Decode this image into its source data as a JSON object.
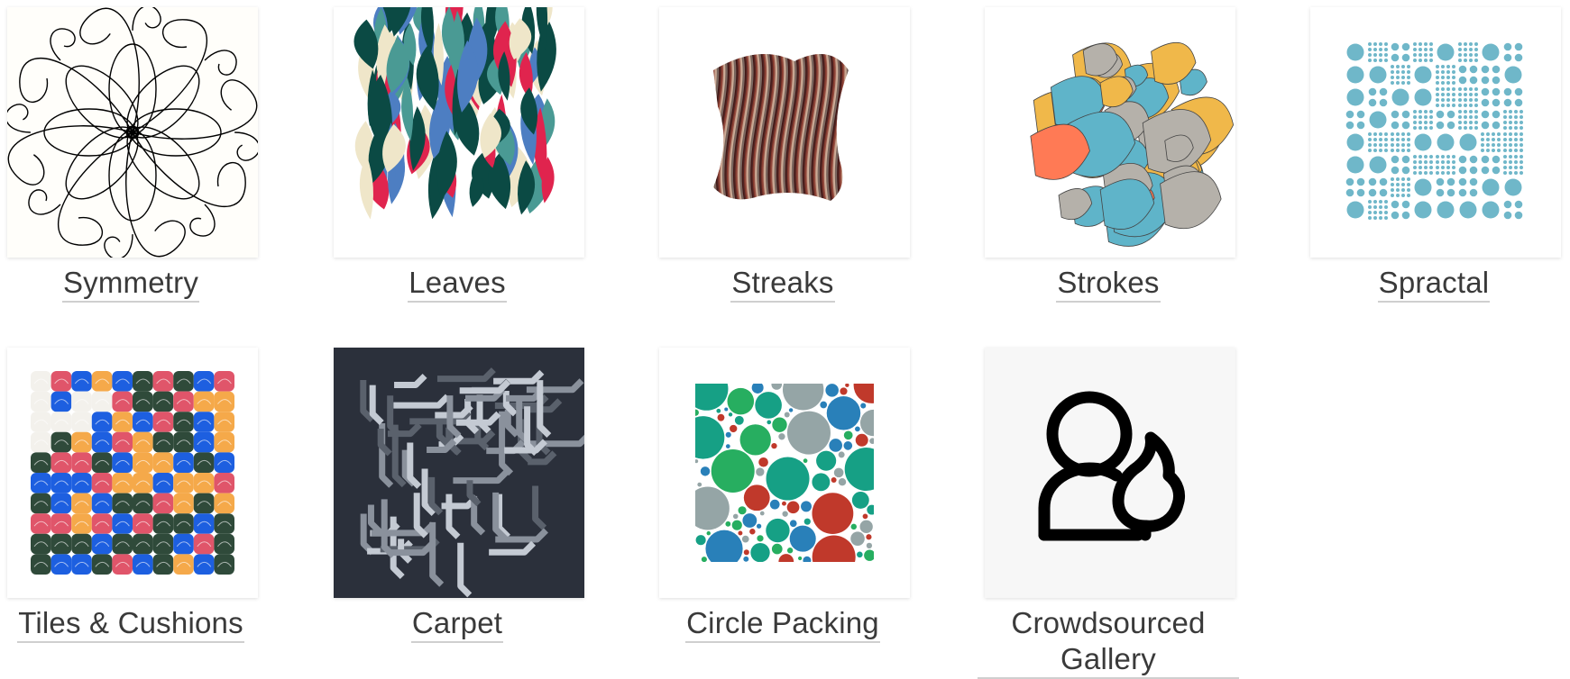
{
  "gallery": {
    "items": [
      {
        "id": "symmetry",
        "label": "Symmetry",
        "icon": "symmetry-thumbnail"
      },
      {
        "id": "leaves",
        "label": "Leaves",
        "icon": "leaves-thumbnail",
        "colors": [
          "#0b4a44",
          "#e0244e",
          "#4a9a94",
          "#4d7ec2",
          "#efe6c9"
        ]
      },
      {
        "id": "streaks",
        "label": "Streaks",
        "icon": "streaks-thumbnail",
        "colors": [
          "#3b0d0c",
          "#8a3a2c",
          "#c9a58f",
          "#6e5a52"
        ]
      },
      {
        "id": "strokes",
        "label": "Strokes",
        "icon": "strokes-thumbnail",
        "colors": [
          "#5fb4c9",
          "#f0b84a",
          "#ff7a55",
          "#b5b1aa"
        ]
      },
      {
        "id": "spractal",
        "label": "Spractal",
        "icon": "spractal-thumbnail",
        "colors": [
          "#6fb7c9"
        ]
      },
      {
        "id": "tiles",
        "label": "Tiles & Cushions",
        "icon": "tiles-thumbnail",
        "colors": [
          "#2f4a3a",
          "#e0556a",
          "#f5a94a",
          "#1d5fe0",
          "#f3f1ec"
        ]
      },
      {
        "id": "carpet",
        "label": "Carpet",
        "icon": "carpet-thumbnail",
        "colors": [
          "#2b303b",
          "#c4cad3",
          "#8a919c",
          "#5a616c"
        ]
      },
      {
        "id": "circles",
        "label": "Circle Packing",
        "icon": "circle-packing-thumbnail",
        "colors": [
          "#27ae60",
          "#c0392b",
          "#95a5a6",
          "#16a085",
          "#2980b9"
        ]
      },
      {
        "id": "crowdsourced",
        "label": "Crowdsourced Gallery",
        "icon": "person-tree-icon"
      }
    ]
  }
}
